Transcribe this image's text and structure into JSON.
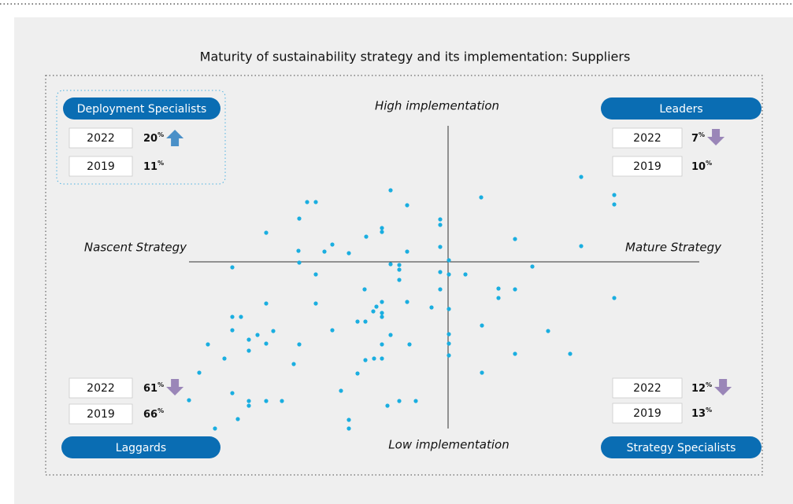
{
  "title": "Maturity of sustainability strategy and its implementation: Suppliers",
  "axes": {
    "top": "High implementation",
    "bottom": "Low implementation",
    "left": "Nascent Strategy",
    "right": "Mature Strategy"
  },
  "quadrants": [
    {
      "name": "Deployment Specialists",
      "rows": [
        {
          "year": "2022",
          "value": "20",
          "unit": "%",
          "trend": "up"
        },
        {
          "year": "2019",
          "value": "11",
          "unit": "%"
        }
      ]
    },
    {
      "name": "Leaders",
      "rows": [
        {
          "year": "2022",
          "value": "7",
          "unit": "%",
          "trend": "down"
        },
        {
          "year": "2019",
          "value": "10",
          "unit": "%"
        }
      ]
    },
    {
      "name": "Laggards",
      "rows": [
        {
          "year": "2022",
          "value": "61",
          "unit": "%",
          "trend": "down"
        },
        {
          "year": "2019",
          "value": "66",
          "unit": "%"
        }
      ]
    },
    {
      "name": "Strategy Specialists",
      "rows": [
        {
          "year": "2022",
          "value": "12",
          "unit": "%",
          "trend": "down"
        },
        {
          "year": "2019",
          "value": "13",
          "unit": "%"
        }
      ]
    }
  ]
}
